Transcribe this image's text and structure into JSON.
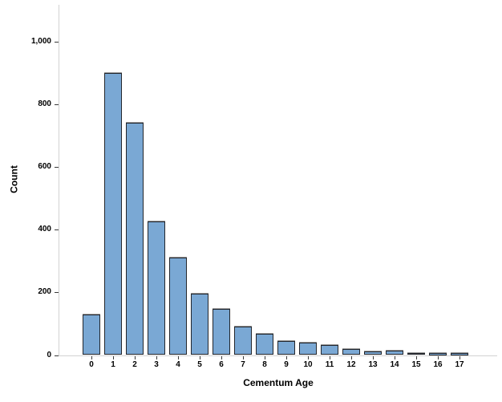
{
  "chart_data": {
    "type": "bar",
    "title": "",
    "xlabel": "Cementum Age",
    "ylabel": "Count",
    "categories": [
      "0",
      "1",
      "2",
      "3",
      "4",
      "5",
      "6",
      "7",
      "8",
      "9",
      "10",
      "11",
      "12",
      "13",
      "14",
      "15",
      "16",
      "17"
    ],
    "values": [
      130,
      900,
      740,
      425,
      310,
      195,
      148,
      90,
      68,
      45,
      40,
      32,
      20,
      12,
      14,
      7,
      3,
      3
    ],
    "y_ticks": [
      {
        "value": 0,
        "label": "0"
      },
      {
        "value": 200,
        "label": "200"
      },
      {
        "value": 400,
        "label": "400"
      },
      {
        "value": 600,
        "label": "600"
      },
      {
        "value": 800,
        "label": "800"
      },
      {
        "value": 1000,
        "label": "1,000"
      }
    ],
    "ylim": [
      0,
      1115
    ],
    "grid": false,
    "legend": null
  },
  "colors": {
    "bar_fill": "#7aa8d4",
    "bar_border": "#23262c",
    "bar_top_shadow": "#9a9a9a",
    "axis_line": "#d2d2d2",
    "tick_mark": "#3a3a3a",
    "text": "#000000",
    "background": "#ffffff"
  }
}
